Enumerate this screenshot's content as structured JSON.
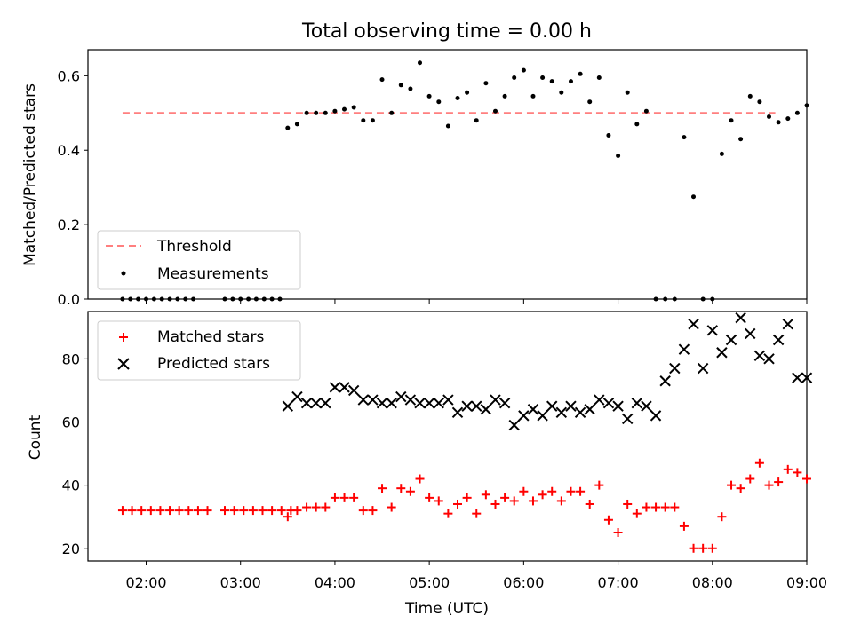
{
  "chart_data": [
    {
      "type": "scatter",
      "title": "Total observing time = 0.00 h",
      "ylabel": "Matched/Predicted stars",
      "xlim": [
        "01:23",
        "09:00"
      ],
      "ylim": [
        0,
        0.67
      ],
      "yticks": [
        0.0,
        0.2,
        0.4,
        0.6
      ],
      "ytick_labels": [
        "0.0",
        "0.2",
        "0.4",
        "0.6"
      ],
      "legend_position": "lower-left",
      "series": [
        {
          "name": "Threshold",
          "kind": "line",
          "style": "dashed",
          "color": "#ff7f7f",
          "x": [
            "01:45",
            "08:40"
          ],
          "y": [
            0.5,
            0.5
          ]
        },
        {
          "name": "Measurements",
          "kind": "points",
          "color": "#000000",
          "x": [
            "01:45",
            "01:50",
            "01:55",
            "02:00",
            "02:05",
            "02:10",
            "02:15",
            "02:20",
            "02:25",
            "02:30",
            "02:50",
            "02:55",
            "03:00",
            "03:05",
            "03:10",
            "03:15",
            "03:20",
            "03:25",
            "03:30",
            "03:36",
            "03:42",
            "03:48",
            "03:54",
            "04:00",
            "04:06",
            "04:12",
            "04:18",
            "04:24",
            "04:30",
            "04:36",
            "04:42",
            "04:48",
            "04:54",
            "05:00",
            "05:06",
            "05:12",
            "05:18",
            "05:24",
            "05:30",
            "05:36",
            "05:42",
            "05:48",
            "05:54",
            "06:00",
            "06:06",
            "06:12",
            "06:18",
            "06:24",
            "06:30",
            "06:36",
            "06:42",
            "06:48",
            "06:54",
            "07:00",
            "07:06",
            "07:12",
            "07:18",
            "07:24",
            "07:30",
            "07:36",
            "07:42",
            "07:48",
            "07:54",
            "08:00",
            "08:06",
            "08:12",
            "08:18",
            "08:24",
            "08:30",
            "08:36",
            "08:42",
            "08:48",
            "08:54",
            "09:00"
          ],
          "y": [
            0,
            0,
            0,
            0,
            0,
            0,
            0,
            0,
            0,
            0,
            0,
            0,
            0,
            0,
            0,
            0,
            0,
            0,
            0.46,
            0.47,
            0.5,
            0.5,
            0.5,
            0.505,
            0.51,
            0.515,
            0.48,
            0.48,
            0.59,
            0.5,
            0.575,
            0.565,
            0.635,
            0.545,
            0.53,
            0.465,
            0.54,
            0.555,
            0.48,
            0.58,
            0.505,
            0.545,
            0.595,
            0.615,
            0.545,
            0.595,
            0.585,
            0.555,
            0.585,
            0.605,
            0.53,
            0.595,
            0.44,
            0.385,
            0.555,
            0.47,
            0.505,
            0,
            0,
            0,
            0.435,
            0.275,
            0,
            0,
            0.39,
            0.48,
            0.43,
            0.545,
            0.53,
            0.49,
            0.475,
            0.485,
            0.5,
            0.52
          ]
        }
      ]
    },
    {
      "type": "scatter",
      "xlabel": "Time (UTC)",
      "ylabel": "Count",
      "xlim": [
        "01:23",
        "09:00"
      ],
      "ylim": [
        16,
        95
      ],
      "xticks": [
        "02:00",
        "03:00",
        "04:00",
        "05:00",
        "06:00",
        "07:00",
        "08:00",
        "09:00"
      ],
      "yticks": [
        20,
        40,
        60,
        80
      ],
      "ytick_labels": [
        "20",
        "40",
        "60",
        "80"
      ],
      "legend_position": "upper-left",
      "series": [
        {
          "name": "Matched stars",
          "marker": "plus",
          "color": "#ff0000",
          "x": [
            "01:45",
            "01:51",
            "01:57",
            "02:03",
            "02:09",
            "02:15",
            "02:21",
            "02:27",
            "02:33",
            "02:39",
            "02:50",
            "02:56",
            "03:02",
            "03:08",
            "03:14",
            "03:20",
            "03:26",
            "03:32",
            "03:30",
            "03:36",
            "03:42",
            "03:48",
            "03:54",
            "04:00",
            "04:06",
            "04:12",
            "04:18",
            "04:24",
            "04:30",
            "04:36",
            "04:42",
            "04:48",
            "04:54",
            "05:00",
            "05:06",
            "05:12",
            "05:18",
            "05:24",
            "05:30",
            "05:36",
            "05:42",
            "05:48",
            "05:54",
            "06:00",
            "06:06",
            "06:12",
            "06:18",
            "06:24",
            "06:30",
            "06:36",
            "06:42",
            "06:48",
            "06:54",
            "07:00",
            "07:06",
            "07:12",
            "07:18",
            "07:24",
            "07:30",
            "07:36",
            "07:42",
            "07:48",
            "07:54",
            "08:00",
            "08:06",
            "08:12",
            "08:18",
            "08:24",
            "08:30",
            "08:36",
            "08:42",
            "08:48",
            "08:54",
            "09:00"
          ],
          "y": [
            32,
            32,
            32,
            32,
            32,
            32,
            32,
            32,
            32,
            32,
            32,
            32,
            32,
            32,
            32,
            32,
            32,
            32,
            30,
            32,
            33,
            33,
            33,
            36,
            36,
            36,
            32,
            32,
            39,
            33,
            39,
            38,
            42,
            36,
            35,
            31,
            34,
            36,
            31,
            37,
            34,
            36,
            35,
            38,
            35,
            37,
            38,
            35,
            38,
            38,
            34,
            40,
            29,
            25,
            34,
            31,
            33,
            33,
            33,
            33,
            27,
            20,
            20,
            20,
            30,
            40,
            39,
            42,
            47,
            40,
            41,
            45,
            44,
            42
          ]
        },
        {
          "name": "Predicted stars",
          "marker": "x",
          "color": "#000000",
          "x": [
            "03:30",
            "03:36",
            "03:42",
            "03:48",
            "03:54",
            "04:00",
            "04:06",
            "04:12",
            "04:18",
            "04:24",
            "04:30",
            "04:36",
            "04:42",
            "04:48",
            "04:54",
            "05:00",
            "05:06",
            "05:12",
            "05:18",
            "05:24",
            "05:30",
            "05:36",
            "05:42",
            "05:48",
            "05:54",
            "06:00",
            "06:06",
            "06:12",
            "06:18",
            "06:24",
            "06:30",
            "06:36",
            "06:42",
            "06:48",
            "06:54",
            "07:00",
            "07:06",
            "07:12",
            "07:18",
            "07:24",
            "07:30",
            "07:36",
            "07:42",
            "07:48",
            "07:54",
            "08:00",
            "08:06",
            "08:12",
            "08:18",
            "08:24",
            "08:30",
            "08:36",
            "08:42",
            "08:48",
            "08:54",
            "09:00"
          ],
          "y": [
            65,
            68,
            66,
            66,
            66,
            71,
            71,
            70,
            67,
            67,
            66,
            66,
            68,
            67,
            66,
            66,
            66,
            67,
            63,
            65,
            65,
            64,
            67,
            66,
            59,
            62,
            64,
            62,
            65,
            63,
            65,
            63,
            64,
            67,
            66,
            65,
            61,
            66,
            65,
            62,
            73,
            77,
            83,
            91,
            77,
            89,
            82,
            86,
            93,
            88,
            81,
            80,
            86,
            91,
            74,
            74
          ]
        }
      ]
    }
  ]
}
